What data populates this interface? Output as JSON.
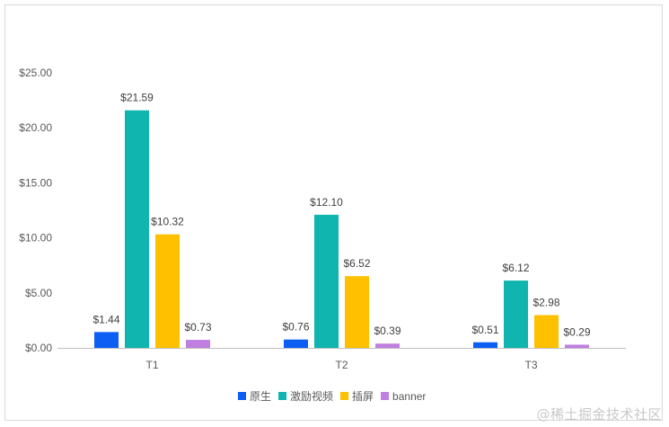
{
  "chart_data": {
    "type": "bar",
    "title": "",
    "xlabel": "",
    "ylabel": "",
    "categories": [
      "T1",
      "T2",
      "T3"
    ],
    "series": [
      {
        "name": "原生",
        "color": "#0d5ef2",
        "values": [
          1.44,
          0.76,
          0.51
        ],
        "labels": [
          "$1.44",
          "$0.76",
          "$0.51"
        ]
      },
      {
        "name": "激励视频",
        "color": "#0fb5ae",
        "values": [
          21.59,
          12.1,
          6.12
        ],
        "labels": [
          "$21.59",
          "$12.10",
          "$6.12"
        ]
      },
      {
        "name": "插屏",
        "color": "#ffc000",
        "values": [
          10.32,
          6.52,
          2.98
        ],
        "labels": [
          "$10.32",
          "$6.52",
          "$2.98"
        ]
      },
      {
        "name": "banner",
        "color": "#bf7fe0",
        "values": [
          0.73,
          0.39,
          0.29
        ],
        "labels": [
          "$0.73",
          "$0.39",
          "$0.29"
        ]
      }
    ],
    "ylim": [
      0,
      25
    ],
    "yticks": [
      "$0.00",
      "$5.00",
      "$10.00",
      "$15.00",
      "$20.00",
      "$25.00"
    ],
    "ytick_values": [
      0,
      5,
      10,
      15,
      20,
      25
    ],
    "grid": false,
    "legend": "bottom"
  },
  "watermark": "@稀土掘金技术社区"
}
